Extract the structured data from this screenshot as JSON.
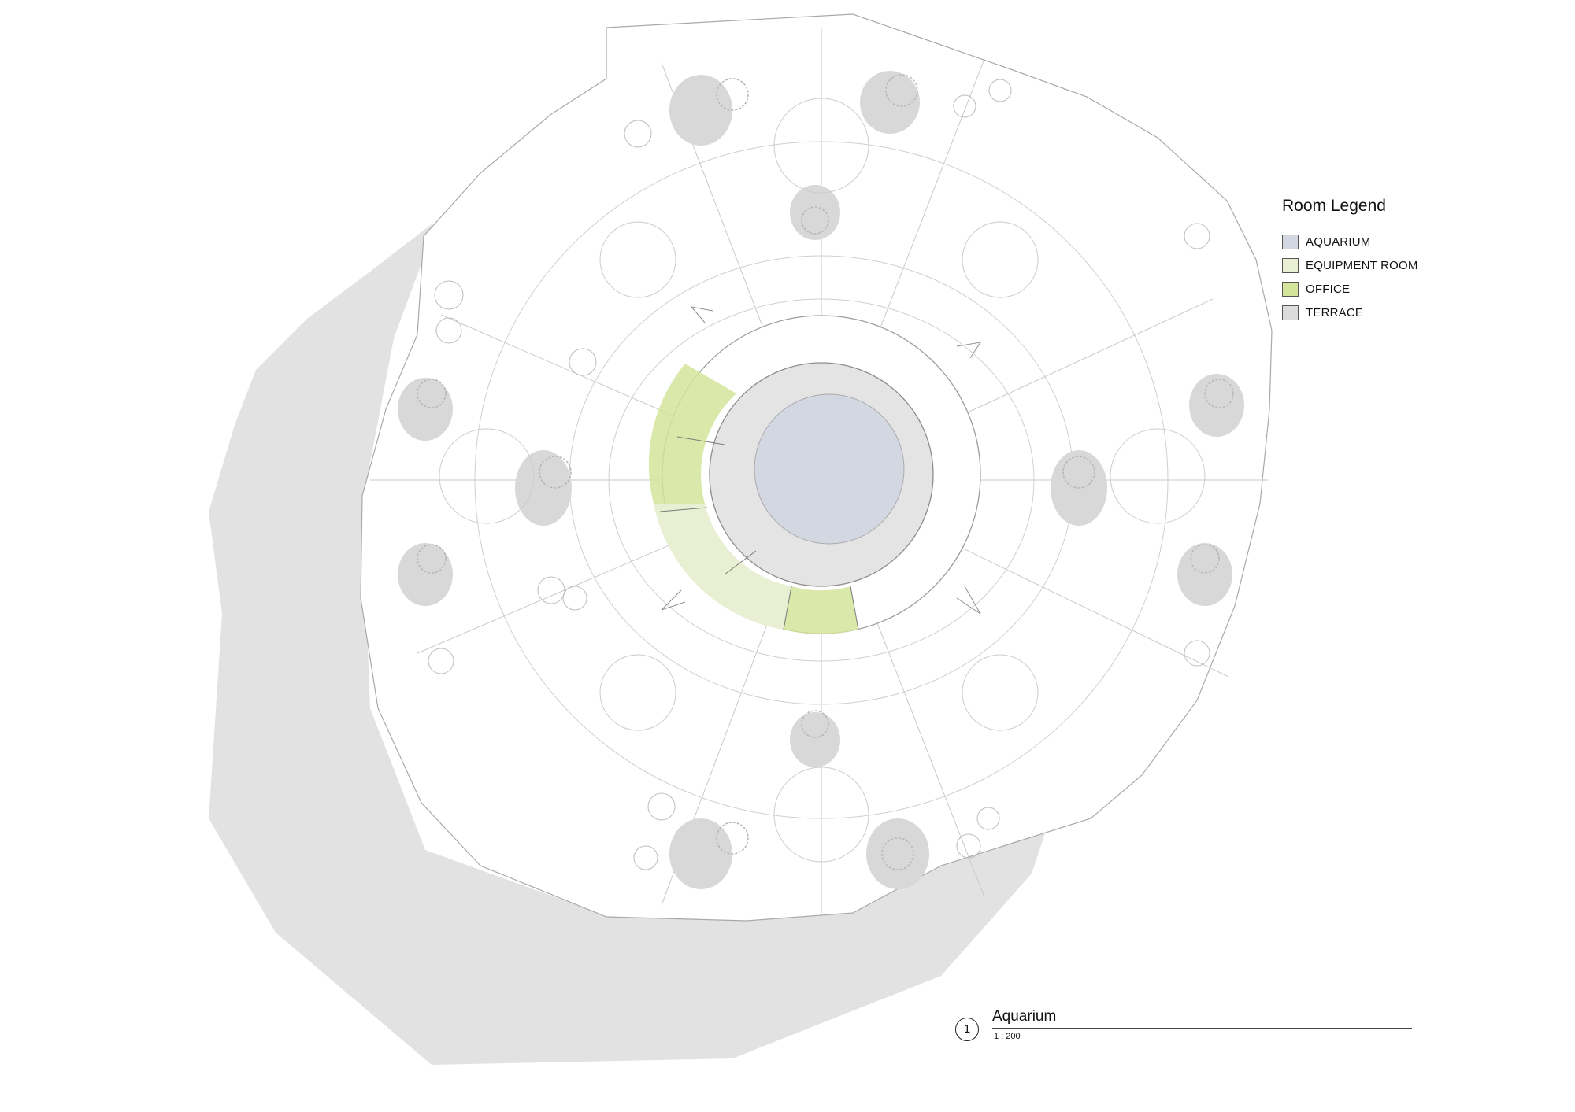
{
  "legend": {
    "title": "Room Legend",
    "items": [
      {
        "label": "AQUARIUM",
        "color": "#d3d7e2"
      },
      {
        "label": "EQUIPMENT ROOM",
        "color": "#e8efd2"
      },
      {
        "label": "OFFICE",
        "color": "#d4e49b"
      },
      {
        "label": "TERRACE",
        "color": "#dcdcdc"
      }
    ]
  },
  "view": {
    "number": "1",
    "title": "Aquarium",
    "scale": "1 : 200"
  },
  "colors": {
    "shadow": "#e2e2e2",
    "aquarium": "#d3d7e2",
    "equipment": "#e8efd2",
    "office": "#d4e49b",
    "linework": "#b9b9b9"
  }
}
